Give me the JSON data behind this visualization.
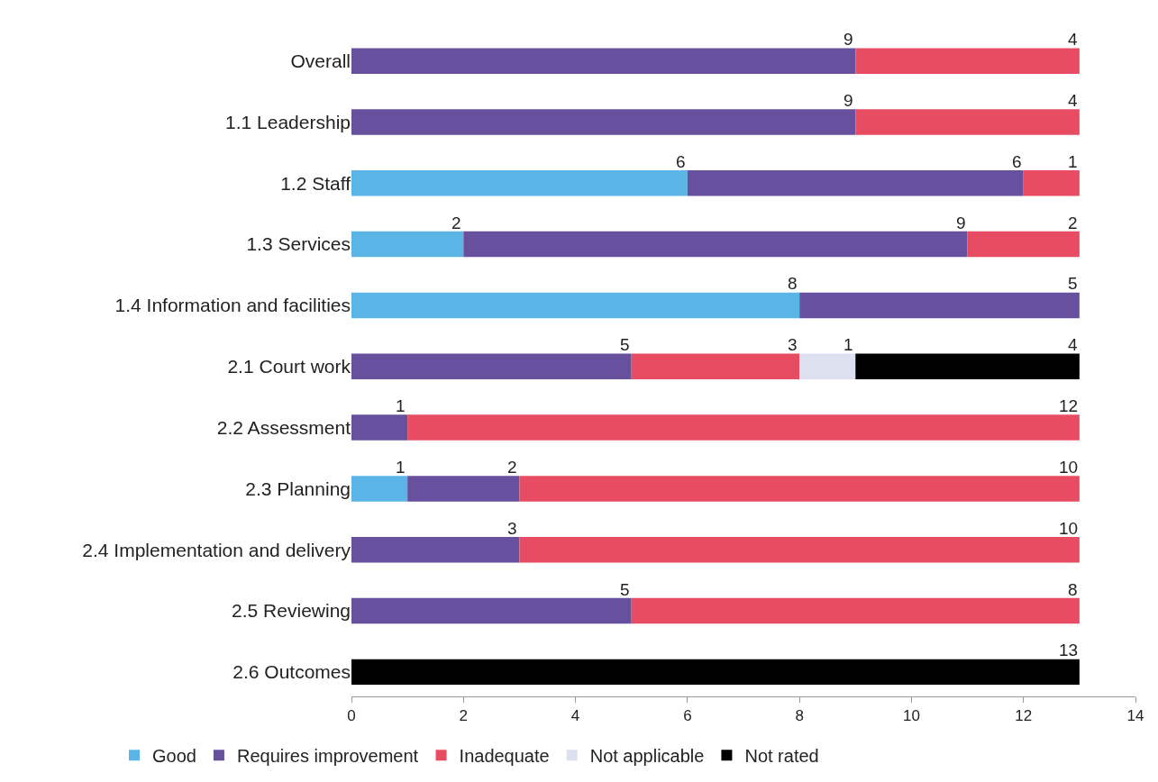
{
  "chart_data": {
    "type": "bar",
    "orientation": "horizontal",
    "stacked": true,
    "data_labels": true,
    "legend": "bottom",
    "grid": false,
    "categories": [
      "Overall",
      "1.1 Leadership",
      "1.2 Staff",
      "1.3 Services",
      "1.4 Information and facilities",
      "2.1 Court work",
      "2.2 Assessment",
      "2.3 Planning",
      "2.4 Implementation and delivery",
      "2.5 Reviewing",
      "2.6 Outcomes"
    ],
    "xlim": [
      0,
      14
    ],
    "xticks": [
      0,
      2,
      4,
      6,
      8,
      10,
      12,
      14
    ],
    "series": [
      {
        "name": "Good",
        "color": "#5ab4e5",
        "values": [
          null,
          null,
          6,
          2,
          8,
          null,
          null,
          1,
          null,
          null,
          null
        ]
      },
      {
        "name": "Requires improvement",
        "color": "#67509e",
        "values": [
          9,
          9,
          6,
          9,
          5,
          5,
          1,
          2,
          3,
          5,
          null
        ]
      },
      {
        "name": "Inadequate",
        "color": "#e84c63",
        "values": [
          4,
          4,
          1,
          2,
          null,
          3,
          12,
          10,
          10,
          8,
          null
        ]
      },
      {
        "name": "Not applicable",
        "color": "#dde0ee",
        "values": [
          null,
          null,
          null,
          null,
          null,
          1,
          null,
          null,
          null,
          null,
          null
        ]
      },
      {
        "name": "Not rated",
        "color": "#000000",
        "values": [
          null,
          null,
          null,
          null,
          null,
          4,
          null,
          null,
          null,
          null,
          13
        ]
      }
    ]
  }
}
